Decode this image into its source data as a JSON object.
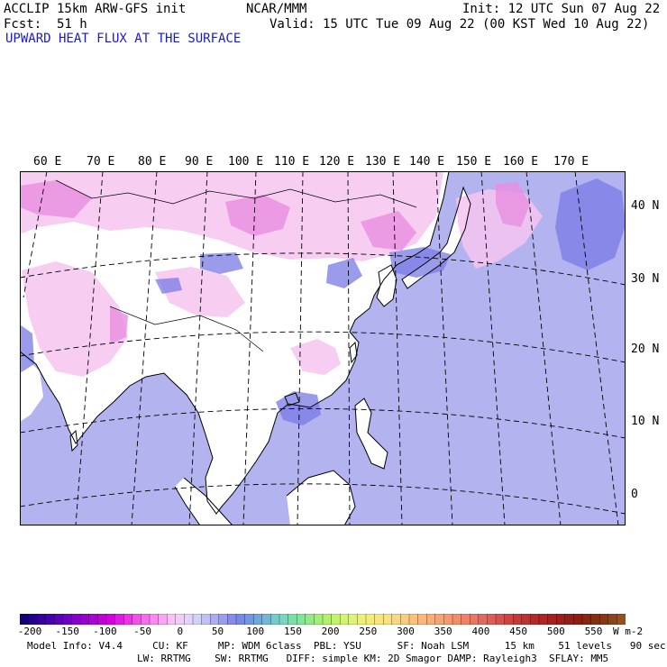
{
  "header": {
    "model": "ACCLIP 15km ARW-GFS init",
    "org": "NCAR/MMM",
    "init": "Init: 12 UTC Sun 07 Aug 22",
    "fcst_label": "Fcst:",
    "fcst_value": "51 h",
    "valid": "Valid: 15 UTC Tue 09 Aug 22 (00 KST Wed 10 Aug 22)",
    "field": "UPWARD HEAT FLUX AT THE SURFACE"
  },
  "map": {
    "lon_labels": [
      "60 E",
      "70 E",
      "80 E",
      "90 E",
      "100 E",
      "110 E",
      "120 E",
      "130 E",
      "140 E",
      "150 E",
      "160 E",
      "170 E"
    ],
    "lat_labels": [
      "40 N",
      "30 N",
      "20 N",
      "10 N",
      "0"
    ],
    "colors": {
      "ocean": "#b3b3f0",
      "land": "#ffffff",
      "negative_land": "#f6c6f0",
      "strong_negative": "#e98de0",
      "positive": "#7a7ae6",
      "coast": "#000000"
    }
  },
  "colorbar": {
    "labels": [
      "-200",
      "-150",
      "-100",
      "-50",
      "0",
      "50",
      "100",
      "150",
      "200",
      "250",
      "300",
      "350",
      "400",
      "450",
      "500",
      "550"
    ],
    "unit": "W m-2"
  },
  "footer": {
    "line1": "Model Info: V4.4     CU: KF     MP: WDM 6class  PBL: YSU      SF: Noah LSM      15 km    51 levels   90 sec",
    "line2": "LW: RRTMG    SW: RRTMG   DIFF: simple KM: 2D Smagor DAMP: Rayleigh3  SFLAY: MM5"
  }
}
